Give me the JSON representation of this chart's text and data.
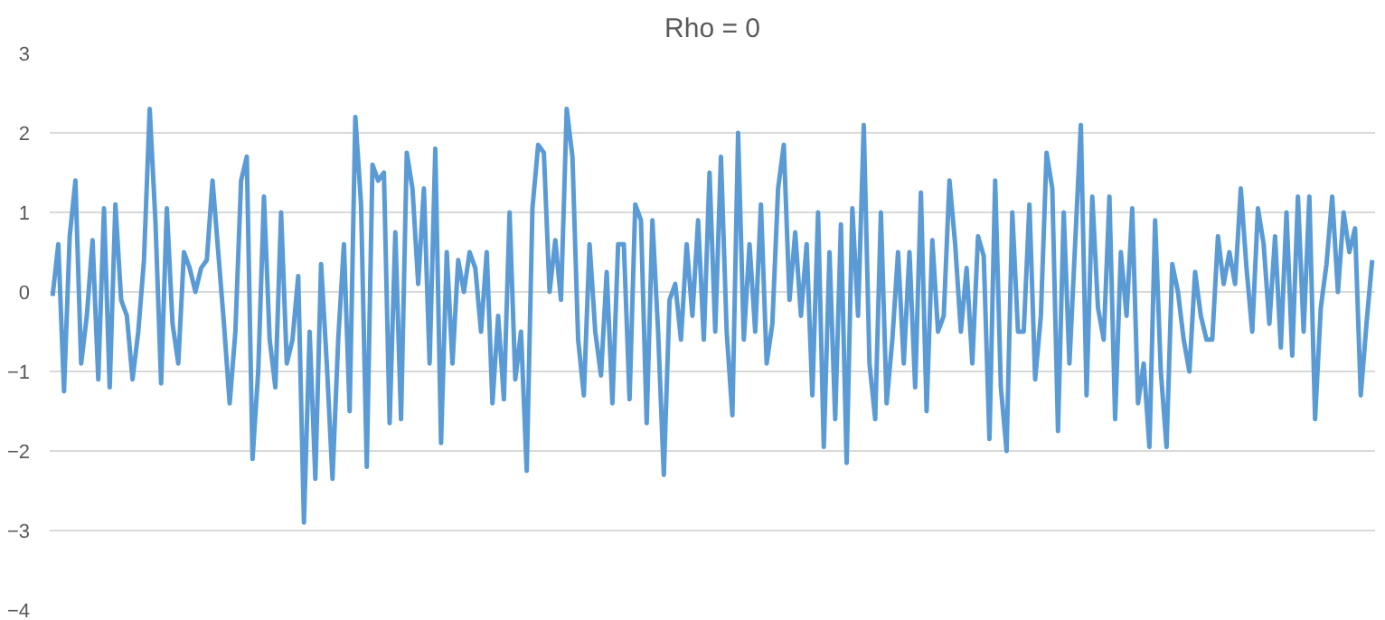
{
  "chart_data": {
    "type": "line",
    "title": "Rho = 0",
    "values": [
      -0.05,
      0.6,
      -1.25,
      0.7,
      1.4,
      -0.9,
      -0.3,
      0.65,
      -1.1,
      1.05,
      -1.2,
      1.1,
      -0.1,
      -0.3,
      -1.1,
      -0.5,
      0.4,
      2.3,
      0.9,
      -1.15,
      1.05,
      -0.4,
      -0.9,
      0.5,
      0.3,
      0.0,
      0.3,
      0.4,
      1.4,
      0.5,
      -0.4,
      -1.4,
      -0.5,
      1.4,
      1.7,
      -2.1,
      -1.0,
      1.2,
      -0.6,
      -1.2,
      1.0,
      -0.9,
      -0.6,
      0.2,
      -2.9,
      -0.5,
      -2.35,
      0.35,
      -0.9,
      -2.35,
      -0.6,
      0.6,
      -1.5,
      2.2,
      1.1,
      -2.2,
      1.6,
      1.4,
      1.5,
      -1.65,
      0.75,
      -1.6,
      1.75,
      1.3,
      0.1,
      1.3,
      -0.9,
      1.8,
      -1.9,
      0.5,
      -0.9,
      0.4,
      0.0,
      0.5,
      0.3,
      -0.5,
      0.5,
      -1.4,
      -0.3,
      -1.35,
      1.0,
      -1.1,
      -0.5,
      -2.25,
      1.05,
      1.85,
      1.75,
      0.0,
      0.65,
      -0.1,
      2.3,
      1.7,
      -0.6,
      -1.3,
      0.6,
      -0.5,
      -1.05,
      0.25,
      -1.4,
      0.6,
      0.6,
      -1.35,
      1.1,
      0.9,
      -1.65,
      0.9,
      -0.5,
      -2.3,
      -0.1,
      0.1,
      -0.6,
      0.6,
      -0.3,
      0.9,
      -0.6,
      1.5,
      -0.5,
      1.7,
      -0.5,
      -1.55,
      2.0,
      -0.6,
      0.6,
      -0.5,
      1.1,
      -0.9,
      -0.4,
      1.3,
      1.85,
      -0.1,
      0.75,
      -0.3,
      0.6,
      -1.3,
      1.0,
      -1.95,
      0.5,
      -1.6,
      0.85,
      -2.15,
      1.05,
      -0.3,
      2.1,
      -0.9,
      -1.6,
      1.0,
      -1.4,
      -0.6,
      0.5,
      -0.9,
      0.5,
      -1.2,
      1.25,
      -1.5,
      0.65,
      -0.5,
      -0.3,
      1.4,
      0.6,
      -0.5,
      0.3,
      -0.9,
      0.7,
      0.45,
      -1.85,
      1.4,
      -1.2,
      -2.0,
      1.0,
      -0.5,
      -0.5,
      1.1,
      -1.1,
      -0.3,
      1.75,
      1.3,
      -1.75,
      1.0,
      -0.9,
      0.6,
      2.1,
      -1.3,
      1.2,
      -0.2,
      -0.6,
      1.2,
      -1.6,
      0.5,
      -0.3,
      1.05,
      -1.4,
      -0.9,
      -1.95,
      0.9,
      -1.0,
      -1.95,
      0.35,
      0.0,
      -0.6,
      -1.0,
      0.25,
      -0.3,
      -0.6,
      -0.6,
      0.7,
      0.1,
      0.5,
      0.1,
      1.3,
      0.3,
      -0.5,
      1.05,
      0.6,
      -0.4,
      0.7,
      -0.7,
      1.0,
      -0.8,
      1.2,
      -0.5,
      1.2,
      -1.6,
      -0.2,
      0.35,
      1.2,
      0.0,
      1.0,
      0.5,
      0.8,
      -1.3,
      -0.4,
      0.4
    ],
    "color": "#5b9bd5",
    "ylim": [
      -4,
      3
    ],
    "yticks": [
      -4,
      -3,
      -2,
      -1,
      0,
      1,
      2,
      3
    ],
    "grid": "y",
    "tick_labels": "y"
  }
}
